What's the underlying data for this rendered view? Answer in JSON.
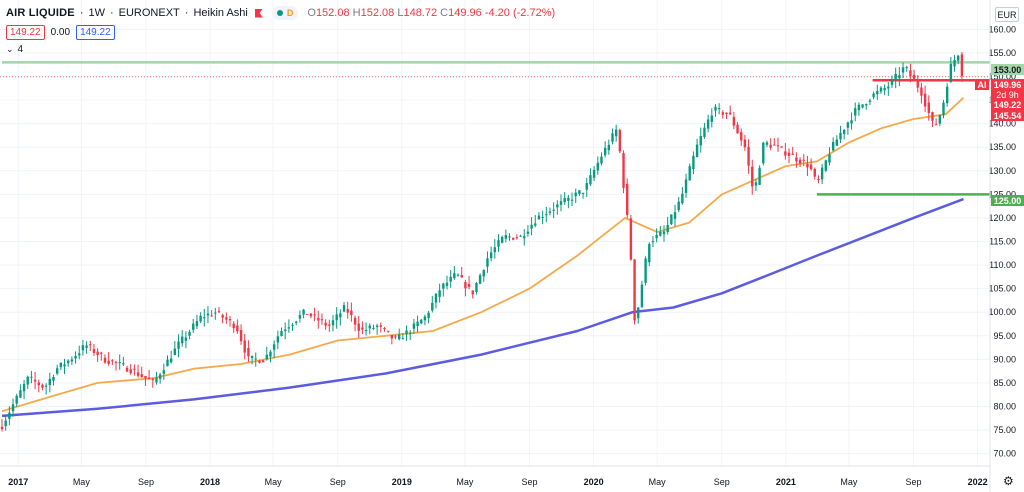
{
  "header": {
    "symbol": "AIR LIQUIDE",
    "interval": "1W",
    "exchange": "EURONEXT",
    "chart_style": "Heikin Ashi",
    "pill_letter": "D",
    "ohlc": {
      "o": "152.08",
      "h": "152.08",
      "l": "148.72",
      "c": "149.96",
      "change": "-4.20",
      "change_pct": "(-2.72%)"
    }
  },
  "position_row": {
    "sell": "149.22",
    "spread": "0.00",
    "buy": "149.22"
  },
  "indicators_row": {
    "count": "4"
  },
  "currency": "EUR",
  "price_labels": {
    "resistance": "153.00",
    "last": "149.96",
    "countdown": "2d 9h",
    "tag": "AI",
    "horizontal": "149.22",
    "ema": "145.54",
    "support": "125.00"
  },
  "colors": {
    "up": "#089981",
    "down": "#f23645",
    "ema_fast": "#f5a94c",
    "ema_slow": "#5b5ce2",
    "resistance": "#a5d6a7",
    "support": "#4caf50",
    "hline": "#f23645"
  },
  "chart_data": {
    "type": "candlestick",
    "y_ticks": [
      160,
      155,
      150,
      145,
      140,
      135,
      130,
      125,
      120,
      115,
      110,
      105,
      100,
      95,
      90,
      85,
      80,
      75,
      70
    ],
    "y_range": [
      68,
      162
    ],
    "x_ticks": [
      "2017",
      "May",
      "Sep",
      "2018",
      "May",
      "Sep",
      "2019",
      "May",
      "Sep",
      "2020",
      "May",
      "Sep",
      "2021",
      "May",
      "Sep",
      "2022"
    ],
    "x_range": [
      "2016-12-01",
      "2022-01-15"
    ],
    "price_path": [
      [
        "2016-12-01",
        76
      ],
      [
        "2016-12-20",
        80
      ],
      [
        "2017-01-20",
        86
      ],
      [
        "2017-02-20",
        84
      ],
      [
        "2017-03-15",
        88
      ],
      [
        "2017-04-10",
        90
      ],
      [
        "2017-05-10",
        93
      ],
      [
        "2017-06-15",
        90
      ],
      [
        "2017-08-01",
        88
      ],
      [
        "2017-09-15",
        85
      ],
      [
        "2017-11-01",
        93
      ],
      [
        "2017-12-15",
        99
      ],
      [
        "2018-01-10",
        100
      ],
      [
        "2018-02-20",
        97
      ],
      [
        "2018-03-15",
        90
      ],
      [
        "2018-04-15",
        90
      ],
      [
        "2018-05-15",
        96
      ],
      [
        "2018-07-01",
        100
      ],
      [
        "2018-08-15",
        97
      ],
      [
        "2018-09-15",
        101
      ],
      [
        "2018-10-15",
        96
      ],
      [
        "2018-11-15",
        97
      ],
      [
        "2018-12-20",
        94
      ],
      [
        "2019-01-15",
        96
      ],
      [
        "2019-02-15",
        99
      ],
      [
        "2019-03-15",
        105
      ],
      [
        "2019-04-15",
        108
      ],
      [
        "2019-05-15",
        104
      ],
      [
        "2019-06-15",
        112
      ],
      [
        "2019-07-15",
        116
      ],
      [
        "2019-08-15",
        116
      ],
      [
        "2019-09-15",
        120
      ],
      [
        "2019-10-15",
        122
      ],
      [
        "2019-11-15",
        124
      ],
      [
        "2019-12-15",
        126
      ],
      [
        "2020-01-15",
        133
      ],
      [
        "2020-02-15",
        139
      ],
      [
        "2020-03-10",
        115
      ],
      [
        "2020-03-20",
        97
      ],
      [
        "2020-04-15",
        115
      ],
      [
        "2020-05-15",
        117
      ],
      [
        "2020-06-15",
        124
      ],
      [
        "2020-07-15",
        135
      ],
      [
        "2020-08-15",
        143
      ],
      [
        "2020-09-15",
        142
      ],
      [
        "2020-10-15",
        135
      ],
      [
        "2020-11-01",
        125
      ],
      [
        "2020-11-20",
        136
      ],
      [
        "2020-12-15",
        135
      ],
      [
        "2021-01-15",
        133
      ],
      [
        "2021-02-15",
        131
      ],
      [
        "2021-03-01",
        127
      ],
      [
        "2021-03-25",
        134
      ],
      [
        "2021-04-15",
        138
      ],
      [
        "2021-05-15",
        143
      ],
      [
        "2021-06-15",
        146
      ],
      [
        "2021-07-15",
        148
      ],
      [
        "2021-08-15",
        152
      ],
      [
        "2021-09-15",
        147
      ],
      [
        "2021-10-10",
        139
      ],
      [
        "2021-10-25",
        143
      ],
      [
        "2021-11-10",
        152
      ],
      [
        "2021-11-25",
        155
      ],
      [
        "2021-12-05",
        149
      ]
    ],
    "ema_fast": [
      [
        "2016-12-01",
        79
      ],
      [
        "2017-03-01",
        82
      ],
      [
        "2017-06-01",
        85
      ],
      [
        "2017-09-15",
        86
      ],
      [
        "2017-12-01",
        88
      ],
      [
        "2018-03-01",
        89
      ],
      [
        "2018-06-01",
        91
      ],
      [
        "2018-09-01",
        94
      ],
      [
        "2018-12-01",
        95
      ],
      [
        "2019-03-01",
        96
      ],
      [
        "2019-06-01",
        100
      ],
      [
        "2019-09-01",
        105
      ],
      [
        "2019-12-01",
        112
      ],
      [
        "2020-03-01",
        120
      ],
      [
        "2020-05-01",
        117
      ],
      [
        "2020-07-01",
        119
      ],
      [
        "2020-09-01",
        125
      ],
      [
        "2020-11-01",
        128
      ],
      [
        "2021-01-01",
        131
      ],
      [
        "2021-03-01",
        132
      ],
      [
        "2021-05-01",
        136
      ],
      [
        "2021-07-01",
        139
      ],
      [
        "2021-09-01",
        141
      ],
      [
        "2021-11-01",
        142
      ],
      [
        "2021-12-05",
        145.5
      ]
    ],
    "ema_slow": [
      [
        "2016-12-01",
        78
      ],
      [
        "2017-06-01",
        79.5
      ],
      [
        "2017-12-01",
        81.5
      ],
      [
        "2018-06-01",
        84
      ],
      [
        "2018-12-01",
        87
      ],
      [
        "2019-06-01",
        91
      ],
      [
        "2019-12-01",
        96
      ],
      [
        "2020-03-15",
        100
      ],
      [
        "2020-06-01",
        101
      ],
      [
        "2020-09-01",
        104
      ],
      [
        "2020-12-01",
        108
      ],
      [
        "2021-03-01",
        112
      ],
      [
        "2021-06-01",
        116
      ],
      [
        "2021-09-01",
        120
      ],
      [
        "2021-12-05",
        124
      ]
    ],
    "levels": [
      {
        "name": "resistance",
        "value": 153.0,
        "from": "2016-12-01"
      },
      {
        "name": "support",
        "value": 125.0,
        "from": "2021-03-01"
      },
      {
        "name": "horizontal",
        "value": 149.22,
        "from": "2021-06-15"
      }
    ],
    "last_price": 149.96
  }
}
